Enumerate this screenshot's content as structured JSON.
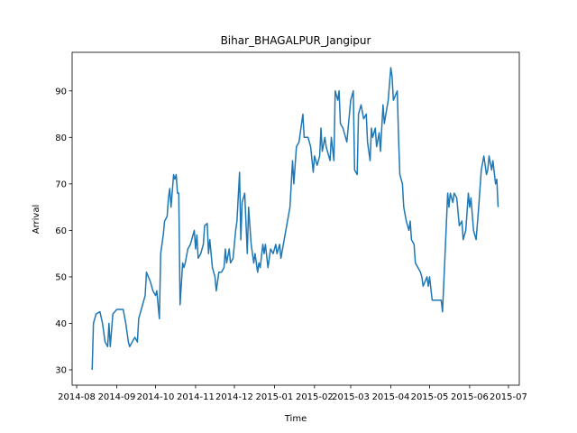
{
  "chart_data": {
    "type": "line",
    "title": "Bihar_BHAGALPUR_Jangipur",
    "x_label": "Time",
    "y_label": "Arrival",
    "x": [
      12,
      13,
      15,
      18,
      20,
      22,
      24,
      25,
      26,
      28,
      31,
      36,
      38,
      40,
      41,
      43,
      45,
      47,
      48,
      50,
      53,
      54,
      57,
      59,
      61,
      62,
      64,
      65,
      67,
      68,
      70,
      71,
      72,
      73,
      75,
      76,
      77,
      78,
      79,
      80,
      82,
      83,
      84,
      86,
      88,
      89,
      91,
      92,
      93,
      94,
      96,
      98,
      99,
      101,
      102,
      103,
      105,
      107,
      108,
      110,
      112,
      114,
      115,
      116,
      118,
      119,
      121,
      123,
      124,
      126,
      127,
      128,
      130,
      132,
      133,
      135,
      137,
      138,
      140,
      141,
      142,
      144,
      145,
      146,
      148,
      150,
      152,
      154,
      155,
      157,
      158,
      165,
      167,
      168,
      170,
      172,
      174,
      175,
      176,
      179,
      181,
      183,
      184,
      186,
      188,
      189,
      190,
      192,
      193,
      195,
      196,
      197,
      199,
      200,
      202,
      203,
      204,
      206,
      208,
      209,
      212,
      214,
      215,
      217,
      218,
      220,
      222,
      224,
      225,
      227,
      228,
      229,
      231,
      232,
      234,
      235,
      237,
      238,
      241,
      243,
      244,
      245,
      248,
      249,
      250,
      252,
      253,
      255,
      257,
      258,
      259,
      261,
      262,
      264,
      266,
      267,
      268,
      271,
      272,
      273,
      275,
      278,
      282,
      283,
      285,
      287,
      288,
      289,
      291,
      292,
      294,
      295,
      296,
      298,
      299,
      301,
      303,
      304,
      305,
      307,
      309,
      311,
      313,
      315,
      317,
      318,
      319,
      321,
      322,
      324,
      325,
      326
    ],
    "series": [
      {
        "name": "Arrival",
        "color": "#1f77b4",
        "values": [
          30,
          40,
          42,
          42.5,
          40,
          36,
          35,
          40,
          35,
          42,
          43,
          43,
          40,
          36,
          35,
          36,
          37,
          36,
          41,
          43,
          46,
          51,
          49,
          47,
          46,
          47,
          41,
          55,
          59,
          62,
          63,
          67,
          69,
          65,
          72,
          71,
          72,
          68,
          68,
          44,
          53,
          52,
          53,
          56,
          57,
          58,
          60,
          56,
          59,
          54,
          55,
          57,
          61,
          61.5,
          55,
          58,
          52,
          50,
          47,
          51,
          51,
          52,
          56,
          53,
          56,
          53,
          54,
          60,
          62,
          72.5,
          58,
          66,
          68,
          55,
          65,
          57,
          53,
          55,
          51,
          53,
          52,
          57,
          55,
          57,
          52,
          56,
          55,
          57,
          55,
          57,
          54,
          65,
          75,
          70,
          78,
          79,
          83,
          85,
          80,
          80,
          78,
          72.5,
          76,
          74,
          76,
          82,
          77,
          80,
          78,
          76,
          75,
          80,
          75,
          90,
          88,
          90,
          83,
          82,
          80,
          79,
          88,
          90,
          73,
          72,
          85,
          87,
          84,
          85,
          79,
          75,
          82,
          80,
          82,
          78,
          81,
          77,
          87,
          83,
          88,
          95,
          93,
          88,
          90,
          80,
          72,
          70,
          65,
          62,
          60,
          62,
          58,
          57,
          53,
          52,
          51,
          50,
          48,
          50,
          48,
          50,
          45,
          45,
          45,
          42.5,
          55,
          68,
          65,
          68,
          66,
          68,
          67,
          64,
          61,
          62,
          58,
          60,
          68,
          65,
          67,
          60,
          58,
          65,
          73,
          76,
          72,
          73,
          76,
          73,
          75,
          70,
          71,
          65
        ]
      }
    ],
    "xlim": [
      -3.5,
      342.4
    ],
    "ylim": [
      26.7,
      98.3
    ],
    "xticks": [
      {
        "value": 0,
        "label": "2014-08"
      },
      {
        "value": 31,
        "label": "2014-09"
      },
      {
        "value": 61,
        "label": "2014-10"
      },
      {
        "value": 92,
        "label": "2014-11"
      },
      {
        "value": 122,
        "label": "2014-12"
      },
      {
        "value": 153,
        "label": "2015-01"
      },
      {
        "value": 184,
        "label": "2015-02"
      },
      {
        "value": 212,
        "label": "2015-03"
      },
      {
        "value": 243,
        "label": "2015-04"
      },
      {
        "value": 273,
        "label": "2015-05"
      },
      {
        "value": 304,
        "label": "2015-06"
      },
      {
        "value": 334,
        "label": "2015-07"
      }
    ],
    "yticks": [
      30,
      40,
      50,
      60,
      70,
      80,
      90
    ],
    "grid": false
  }
}
